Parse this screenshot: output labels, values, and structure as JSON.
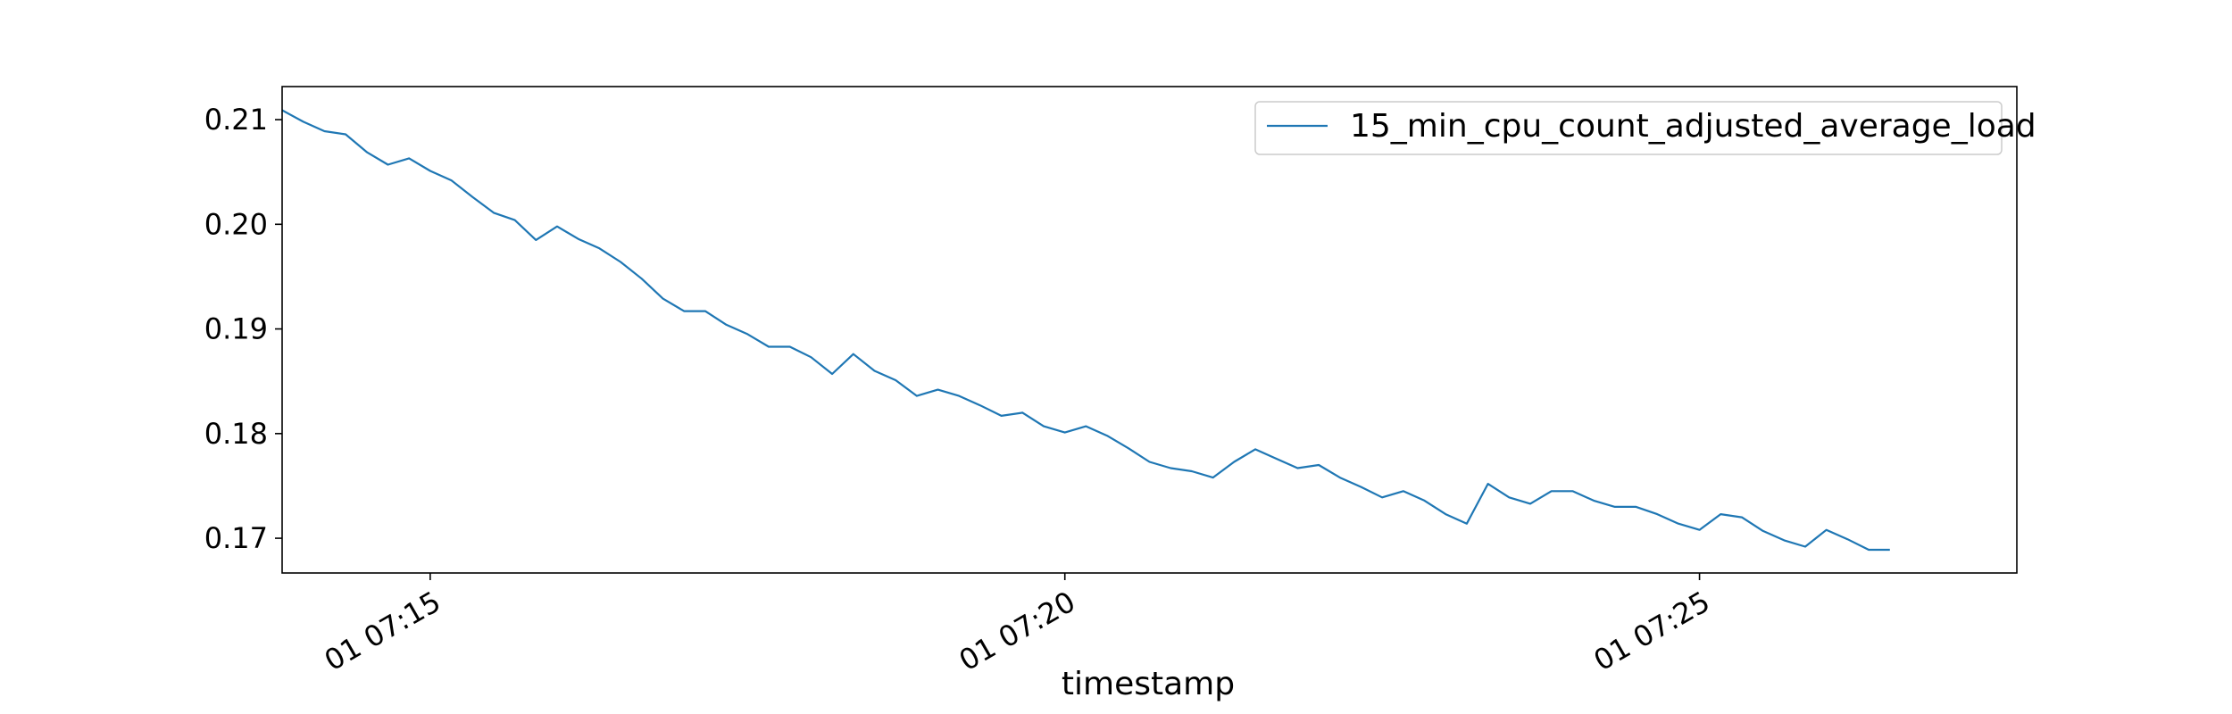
{
  "chart_data": {
    "type": "line",
    "title": "",
    "xlabel": "timestamp",
    "ylabel": "",
    "x_start": "01 07:13:50",
    "x_interval_seconds": 10,
    "xlim": [
      "01 07:13:50",
      "01 07:27:30"
    ],
    "ylim": [
      0.16668,
      0.21316
    ],
    "x_ticks": [
      "01 07:15",
      "01 07:20",
      "01 07:25"
    ],
    "y_ticks": [
      "0.17",
      "0.18",
      "0.19",
      "0.20",
      "0.21"
    ],
    "grid": false,
    "legend_position": "top-right",
    "series": [
      {
        "name": "15_min_cpu_count_adjusted_average_load",
        "color": "#1f77b4",
        "values": [
          0.2109,
          0.2098,
          0.2089,
          0.2086,
          0.2069,
          0.2057,
          0.2063,
          0.2051,
          0.2042,
          0.2026,
          0.2011,
          0.2004,
          0.1985,
          0.1998,
          0.1986,
          0.1977,
          0.1964,
          0.1948,
          0.1929,
          0.1917,
          0.1917,
          0.1904,
          0.1895,
          0.1883,
          0.1883,
          0.1873,
          0.1857,
          0.1876,
          0.186,
          0.1851,
          0.1836,
          0.1842,
          0.1836,
          0.1827,
          0.1817,
          0.182,
          0.1807,
          0.1801,
          0.1807,
          0.1798,
          0.1786,
          0.1773,
          0.1767,
          0.1764,
          0.1758,
          0.1773,
          0.1785,
          0.1776,
          0.1767,
          0.177,
          0.1758,
          0.1749,
          0.1739,
          0.1745,
          0.1736,
          0.1723,
          0.1714,
          0.1752,
          0.1739,
          0.1733,
          0.1745,
          0.1745,
          0.1736,
          0.173,
          0.173,
          0.1723,
          0.1714,
          0.1708,
          0.1723,
          0.172,
          0.1707,
          0.1698,
          0.1692,
          0.1708,
          0.1699,
          0.1689,
          0.1689
        ]
      }
    ]
  }
}
